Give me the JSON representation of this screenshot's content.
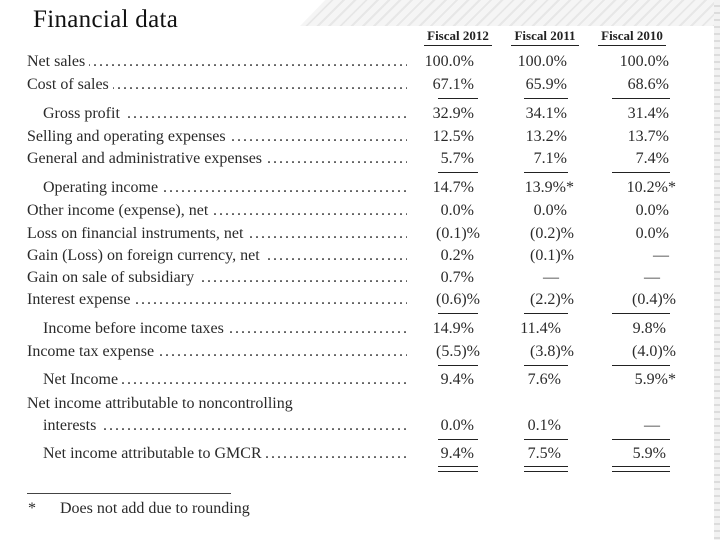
{
  "title": "Financial data",
  "columns": [
    "Fiscal 2012",
    "Fiscal 2011",
    "Fiscal 2010"
  ],
  "rows": [
    {
      "label": "Net sales",
      "values": [
        "100.0%",
        "100.0%",
        "100.0%"
      ]
    },
    {
      "label": "Cost of sales",
      "values": [
        "67.1%",
        "65.9%",
        "68.6%"
      ]
    },
    {
      "label": "Gross profit",
      "values": [
        "32.9%",
        "34.1%",
        "31.4%"
      ]
    },
    {
      "label": "Selling and operating expenses",
      "values": [
        "12.5%",
        "13.2%",
        "13.7%"
      ]
    },
    {
      "label": "General and administrative expenses",
      "values": [
        "5.7%",
        "7.1%",
        "7.4%"
      ]
    },
    {
      "label": "Operating income",
      "values": [
        "14.7%",
        "13.9%*",
        "10.2%*"
      ]
    },
    {
      "label": "Other income (expense), net",
      "values": [
        "0.0%",
        "0.0%",
        "0.0%"
      ]
    },
    {
      "label": "Loss on financial instruments, net",
      "values": [
        "(0.1)%",
        "(0.2)%",
        "0.0%"
      ]
    },
    {
      "label": "Gain (Loss) on foreign currency, net",
      "values": [
        "0.2%",
        "(0.1)%",
        "—"
      ]
    },
    {
      "label": "Gain on sale of subsidiary",
      "values": [
        "0.7%",
        "—",
        "—"
      ]
    },
    {
      "label": "Interest expense",
      "values": [
        "(0.6)%",
        "(2.2)%",
        "(0.4)%"
      ]
    },
    {
      "label": "Income before income taxes",
      "values": [
        "14.9%",
        "11.4%",
        "9.8%"
      ]
    },
    {
      "label": "Income tax expense",
      "values": [
        "(5.5)%",
        "(3.8)%",
        "(4.0)%"
      ]
    },
    {
      "label": "Net Income",
      "values": [
        "9.4%",
        "7.6%",
        "5.9%*"
      ]
    },
    {
      "label": "Net income attributable to noncontrolling",
      "values": [
        "",
        "",
        ""
      ]
    },
    {
      "label": "interests",
      "values": [
        "0.0%",
        "0.1%",
        "—"
      ]
    },
    {
      "label": "Net income attributable to GMCR",
      "values": [
        "9.4%",
        "7.5%",
        "5.9%"
      ]
    }
  ],
  "footnote": {
    "mark": "*",
    "text": "Does not add due to rounding"
  }
}
